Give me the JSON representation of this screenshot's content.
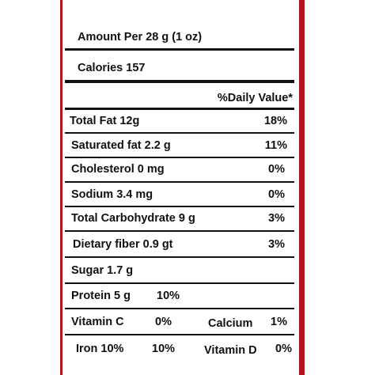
{
  "label": {
    "serving": "Amount Per 28 g (1 oz)",
    "calories": "Calories 157",
    "daily_value_heading": "%Daily Value*",
    "rows": [
      {
        "label": "Total Fat 12g",
        "dv": "18%"
      },
      {
        "label": "Saturated fat 2.2 g",
        "dv": "11%"
      },
      {
        "label": "Cholesterol 0 mg",
        "dv": "0%"
      },
      {
        "label": "Sodium 3.4 mg",
        "dv": "0%"
      },
      {
        "label": "Total Carbohydrate 9 g",
        "dv": "3%"
      },
      {
        "label": "Dietary fiber 0.9 gt",
        "dv": "3%"
      },
      {
        "label": "Sugar 1.7 g"
      }
    ],
    "protein": {
      "label": "Protein 5 g",
      "dv": "10%"
    },
    "vitamins": [
      {
        "left_label": "Vitamin C",
        "left_dv": "0%",
        "right_label": "Calcium",
        "right_dv": "1%"
      },
      {
        "left_label": "Iron 10%",
        "left_dv": "10%",
        "right_label": "Vitamin D",
        "right_dv": "0%"
      }
    ]
  }
}
